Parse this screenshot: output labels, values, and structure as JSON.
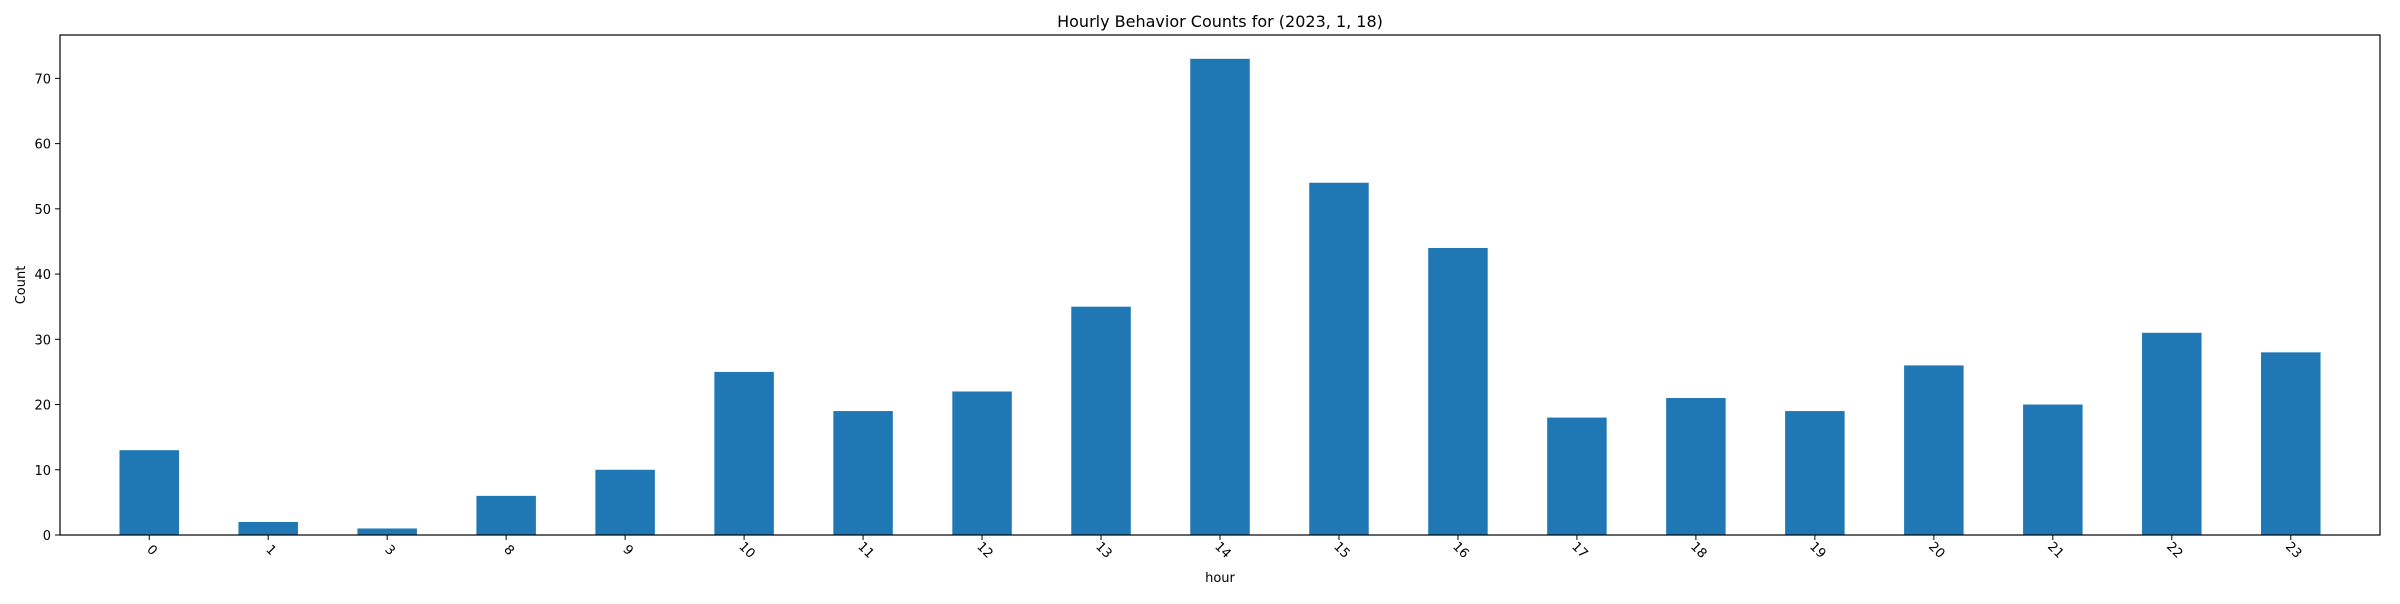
{
  "chart_data": {
    "type": "bar",
    "title": "Hourly Behavior Counts for (2023, 1, 18)",
    "xlabel": "hour",
    "ylabel": "Count",
    "categories": [
      "0",
      "1",
      "3",
      "8",
      "9",
      "10",
      "11",
      "12",
      "13",
      "14",
      "15",
      "16",
      "17",
      "18",
      "19",
      "20",
      "21",
      "22",
      "23"
    ],
    "values": [
      13,
      2,
      1,
      6,
      10,
      25,
      19,
      22,
      35,
      73,
      54,
      44,
      18,
      21,
      19,
      26,
      20,
      31,
      28
    ],
    "ylim": [
      0,
      76.65
    ],
    "yticks": [
      0,
      10,
      20,
      30,
      40,
      50,
      60,
      70
    ],
    "grid": false,
    "legend": "none",
    "bar_color": "#1f77b4",
    "xtick_rotation_deg": 45
  }
}
